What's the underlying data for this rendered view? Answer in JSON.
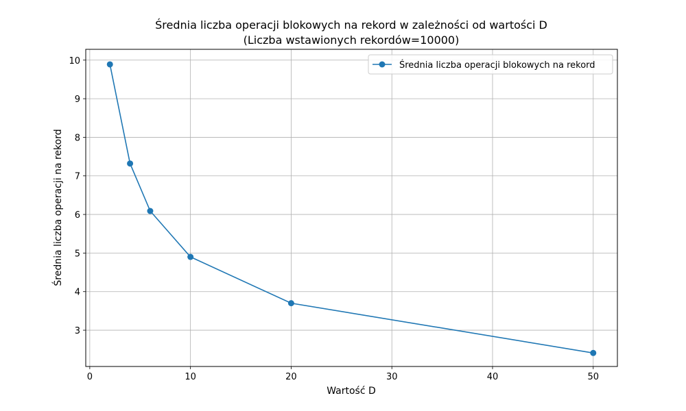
{
  "chart_data": {
    "type": "line",
    "title": "Średnia liczba operacji blokowych na rekord w zależności od wartości D",
    "subtitle": "(Liczba wstawionych rekordów=10000)",
    "xlabel": "Wartość D",
    "ylabel": "Średnia liczba operacji na rekord",
    "xlim": [
      -0.4,
      52.4
    ],
    "ylim": [
      2.06,
      10.28
    ],
    "xticks": [
      0,
      10,
      20,
      30,
      40,
      50
    ],
    "yticks": [
      3,
      4,
      5,
      6,
      7,
      8,
      9,
      10
    ],
    "grid": true,
    "legend_position": "top-right",
    "series": [
      {
        "name": "Średnia liczba operacji blokowych na rekord",
        "color": "#1f77b4",
        "marker": "circle",
        "x": [
          2,
          4,
          6,
          10,
          20,
          50
        ],
        "y": [
          9.89,
          7.32,
          6.09,
          4.9,
          3.7,
          2.41
        ]
      }
    ]
  }
}
